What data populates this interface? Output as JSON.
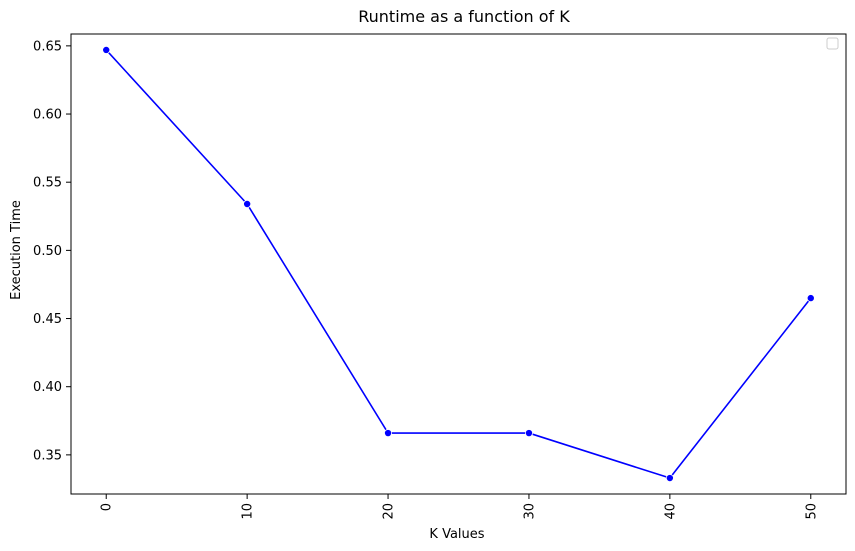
{
  "chart_data": {
    "type": "line",
    "title": "Runtime as a function of K",
    "xlabel": "K Values",
    "ylabel": "Execution Time",
    "x": [
      0,
      10,
      20,
      30,
      40,
      50
    ],
    "series": [
      {
        "values": [
          0.647,
          0.534,
          0.366,
          0.366,
          0.333,
          0.465
        ],
        "color": "#0000ff",
        "marker": "circle"
      }
    ],
    "xticks": [
      "0",
      "10",
      "20",
      "30",
      "40",
      "50"
    ],
    "xtick_rotation": -90,
    "yticks": [
      "0.35",
      "0.40",
      "0.45",
      "0.50",
      "0.55",
      "0.60",
      "0.65"
    ],
    "xlim": [
      -2.5,
      52.5
    ],
    "ylim": [
      0.3213,
      0.6587
    ],
    "grid": false,
    "legend": {
      "placement": "top-right",
      "entries": []
    }
  }
}
